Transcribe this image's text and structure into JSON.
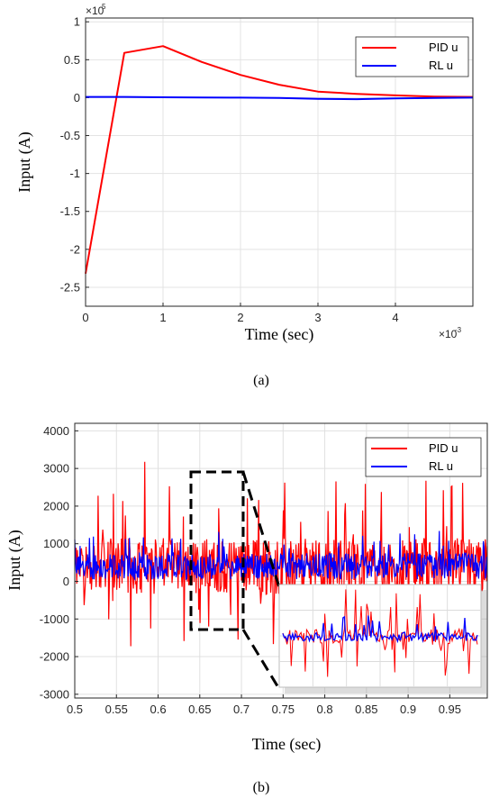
{
  "chart_data": [
    {
      "type": "line",
      "panel_label": "(a)",
      "xlabel": "Time (sec)",
      "ylabel": "Input (A)",
      "x_multiplier_label": "×10",
      "x_multiplier_exp": "-3",
      "y_multiplier_label": "×10",
      "y_multiplier_exp": "5",
      "xlim": [
        0,
        5
      ],
      "ylim": [
        -2.75,
        1.05
      ],
      "xticks": [
        "0",
        "1",
        "2",
        "3",
        "4"
      ],
      "yticks": [
        "-2.5",
        "-2",
        "-1.5",
        "-1",
        "-0.5",
        "0",
        "0.5",
        "1"
      ],
      "grid": true,
      "legend_position": "top-right",
      "series": [
        {
          "name": "PID u",
          "color": "#ff0000",
          "x": [
            0,
            0.5,
            1.0,
            1.5,
            2.0,
            2.5,
            3.0,
            3.5,
            4.0,
            4.5,
            5.0
          ],
          "y": [
            -2.32,
            0.59,
            0.68,
            0.47,
            0.3,
            0.17,
            0.08,
            0.05,
            0.03,
            0.015,
            0.01
          ]
        },
        {
          "name": "RL u",
          "color": "#0000ff",
          "x": [
            0,
            0.5,
            1.0,
            1.5,
            2.0,
            2.5,
            3.0,
            3.5,
            4.0,
            4.5,
            5.0
          ],
          "y": [
            0.01,
            0.01,
            0.005,
            0.003,
            0.0,
            -0.005,
            -0.015,
            -0.02,
            -0.01,
            -0.005,
            0.0
          ]
        }
      ]
    },
    {
      "type": "line",
      "panel_label": "(b)",
      "xlabel": "Time (sec)",
      "ylabel": "Input (A)",
      "xlim": [
        0.5,
        0.995
      ],
      "ylim": [
        -3100,
        4200
      ],
      "xticks": [
        "0.5",
        "0.55",
        "0.6",
        "0.65",
        "0.7",
        "0.75",
        "0.8",
        "0.85",
        "0.9",
        "0.95"
      ],
      "yticks": [
        "-3000",
        "-2000",
        "-1000",
        "0",
        "1000",
        "2000",
        "3000",
        "4000"
      ],
      "grid": true,
      "legend_position": "top-right",
      "series": [
        {
          "name": "PID u",
          "color": "#ff0000",
          "baseline": 400,
          "typical_range": [
            -800,
            1500
          ],
          "extremes": [
            -1500,
            2500
          ]
        },
        {
          "name": "RL u",
          "color": "#0000ff",
          "baseline": 400,
          "typical_range": [
            -100,
            1000
          ],
          "extremes": [
            -300,
            1100
          ]
        }
      ],
      "zoom_region": {
        "x": [
          0.645,
          0.707
        ],
        "y": [
          -1200,
          3000
        ]
      }
    }
  ]
}
